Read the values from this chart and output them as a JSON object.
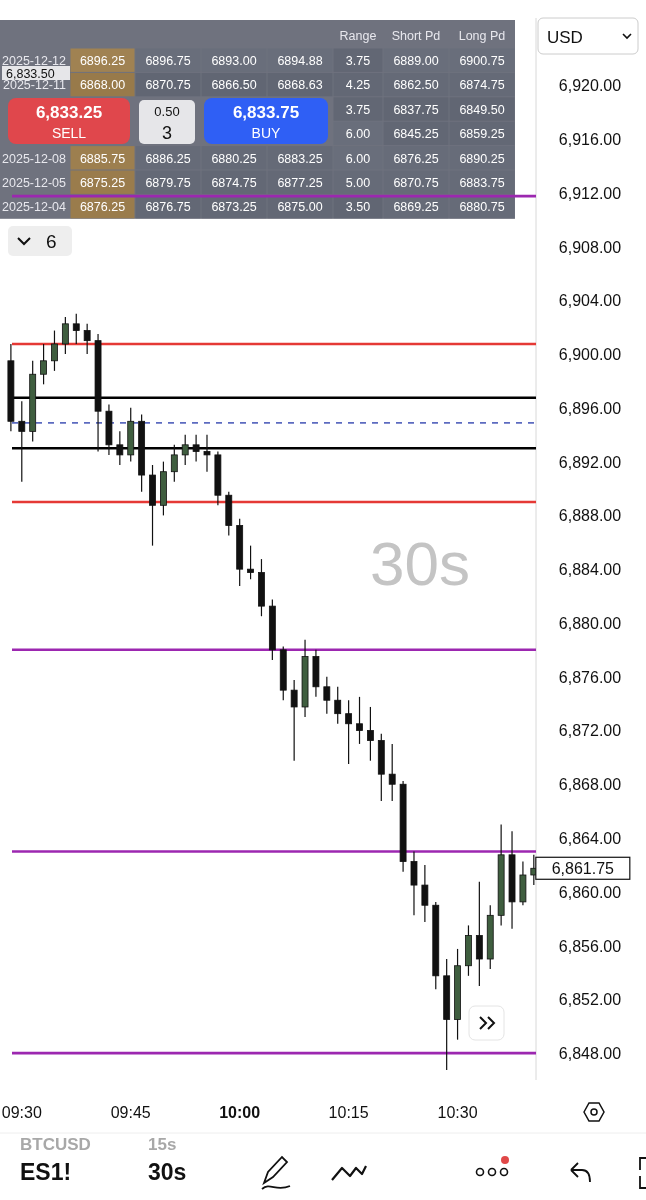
{
  "chart_data": [
    {
      "type": "candlestick",
      "x": [
        9.475,
        9.5,
        9.525,
        9.55,
        9.575,
        9.6,
        9.625,
        9.65,
        9.675,
        9.7,
        9.725,
        9.75,
        9.775,
        9.8,
        9.825,
        9.85,
        9.875,
        9.9,
        9.925,
        9.95,
        9.975,
        10,
        10.025,
        10.05,
        10.075,
        10.1,
        10.125,
        10.15,
        10.175,
        10.2,
        10.225,
        10.25,
        10.275,
        10.3,
        10.325,
        10.35,
        10.375,
        10.4,
        10.425,
        10.45,
        10.475,
        10.5,
        10.525,
        10.55,
        10.575,
        10.6,
        10.625,
        10.65,
        10.675
      ],
      "ohlc": [
        [
          6899.5,
          6900.75,
          6894.25,
          6895
        ],
        [
          6895,
          6896.5,
          6890.5,
          6894.25
        ],
        [
          6894.25,
          6899.5,
          6893.5,
          6898.5
        ],
        [
          6898.5,
          6900.75,
          6897.75,
          6899.5
        ],
        [
          6899.5,
          6901.75,
          6898.75,
          6900.75
        ],
        [
          6900.75,
          6902.75,
          6900,
          6902.25
        ],
        [
          6902.25,
          6903,
          6900.75,
          6901.75
        ],
        [
          6901.75,
          6902.25,
          6900,
          6901
        ],
        [
          6901,
          6901.5,
          6892.75,
          6895.75
        ],
        [
          6895.75,
          6896.25,
          6892.5,
          6893.25
        ],
        [
          6893.25,
          6894.25,
          6891.75,
          6892.5
        ],
        [
          6892.5,
          6896,
          6892,
          6895
        ],
        [
          6895,
          6895.5,
          6889.75,
          6891
        ],
        [
          6891,
          6891.75,
          6885.75,
          6888.75
        ],
        [
          6888.75,
          6892,
          6888,
          6891.25
        ],
        [
          6891.25,
          6893.25,
          6890.5,
          6892.5
        ],
        [
          6892.5,
          6894,
          6891.75,
          6893.25
        ],
        [
          6893.25,
          6894,
          6892,
          6892.75
        ],
        [
          6892.75,
          6894,
          6891.25,
          6892.5
        ],
        [
          6892.5,
          6892.75,
          6888.75,
          6889.5
        ],
        [
          6889.5,
          6889.75,
          6886.5,
          6887.25
        ],
        [
          6887.25,
          6887.75,
          6882.75,
          6884
        ],
        [
          6884,
          6885.75,
          6883.25,
          6883.75
        ],
        [
          6883.75,
          6884.75,
          6880.5,
          6881.25
        ],
        [
          6881.25,
          6881.75,
          6877.25,
          6878
        ],
        [
          6878,
          6878.25,
          6874.25,
          6875
        ],
        [
          6875,
          6875.75,
          6869.75,
          6873.75
        ],
        [
          6873.75,
          6878.75,
          6873,
          6877.5
        ],
        [
          6877.5,
          6878,
          6874.5,
          6875.25
        ],
        [
          6875.25,
          6876,
          6873.25,
          6874.25
        ],
        [
          6874.25,
          6875.25,
          6872.5,
          6873.25
        ],
        [
          6873.25,
          6874.25,
          6869.5,
          6872.5
        ],
        [
          6872.5,
          6874.5,
          6871,
          6872
        ],
        [
          6872,
          6873.75,
          6869.75,
          6871.25
        ],
        [
          6871.25,
          6871.75,
          6866.75,
          6868.75
        ],
        [
          6868.75,
          6871,
          6866.75,
          6868
        ],
        [
          6868,
          6868.25,
          6861.5,
          6862.25
        ],
        [
          6862.25,
          6863,
          6858.25,
          6860.5
        ],
        [
          6860.5,
          6862,
          6857.75,
          6859
        ],
        [
          6859,
          6859.25,
          6852.75,
          6853.75
        ],
        [
          6853.75,
          6855,
          6846.75,
          6850.5
        ],
        [
          6850.5,
          6855.75,
          6849,
          6854.5
        ],
        [
          6854.5,
          6857.5,
          6853.75,
          6856.75
        ],
        [
          6856.75,
          6860.75,
          6853,
          6855
        ],
        [
          6855,
          6859,
          6854.25,
          6858.25
        ],
        [
          6858.25,
          6865,
          6857.5,
          6862.75
        ],
        [
          6862.75,
          6864.5,
          6857.25,
          6859.25
        ],
        [
          6859.25,
          6862.25,
          6859,
          6861.25
        ],
        [
          6861.25,
          6862.75,
          6860.5,
          6861.75
        ]
      ],
      "xlim": [
        9.45,
        10.68
      ],
      "xticks": [
        {
          "value": 9.5,
          "label": "09:30"
        },
        {
          "value": 9.75,
          "label": "09:45"
        },
        {
          "value": 10,
          "label": "10:00"
        },
        {
          "value": 10.25,
          "label": "10:15"
        },
        {
          "value": 10.5,
          "label": "10:30"
        }
      ],
      "ylim": [
        6846,
        6925
      ],
      "yticks": [
        {
          "value": 6848,
          "label": "6,848.00"
        },
        {
          "value": 6852,
          "label": "6,852.00"
        },
        {
          "value": 6856,
          "label": "6,856.00"
        },
        {
          "value": 6860,
          "label": "6,860.00"
        },
        {
          "value": 6864,
          "label": "6,864.00"
        },
        {
          "value": 6868,
          "label": "6,868.00"
        },
        {
          "value": 6872,
          "label": "6,872.00"
        },
        {
          "value": 6876,
          "label": "6,876.00"
        },
        {
          "value": 6880,
          "label": "6,880.00"
        },
        {
          "value": 6884,
          "label": "6,884.00"
        },
        {
          "value": 6888,
          "label": "6,888.00"
        },
        {
          "value": 6892,
          "label": "6,892.00"
        },
        {
          "value": 6896,
          "label": "6,896.00"
        },
        {
          "value": 6900,
          "label": "6,900.00"
        },
        {
          "value": 6904,
          "label": "6,904.00"
        },
        {
          "value": 6908,
          "label": "6,908.00"
        },
        {
          "value": 6912,
          "label": "6,912.00"
        },
        {
          "value": 6916,
          "label": "6,916.00"
        },
        {
          "value": 6920,
          "label": "6,920.00"
        }
      ],
      "ref_lines": [
        {
          "axis": "y",
          "value": 6900.75,
          "color": "#e53935"
        },
        {
          "axis": "y",
          "value": 6896.75,
          "color": "#000000"
        },
        {
          "axis": "y",
          "value": 6894.88,
          "color": "#5c6bc0",
          "line_style": "dashed"
        },
        {
          "axis": "y",
          "value": 6893,
          "color": "#000000"
        },
        {
          "axis": "y",
          "value": 6889,
          "color": "#e53935"
        },
        {
          "axis": "y",
          "value": 6911.75,
          "color": "#9c27b0"
        },
        {
          "axis": "y",
          "value": 6878,
          "color": "#9c27b0"
        },
        {
          "axis": "y",
          "value": 6863,
          "color": "#9c27b0"
        },
        {
          "axis": "y",
          "value": 6848,
          "color": "#9c27b0"
        }
      ],
      "annotations": [
        "30s",
        "6,833.50",
        "6,833.25",
        "SELL",
        "0.50",
        "3",
        "6,833.75",
        "BUY",
        "6",
        "USD",
        "BTCUSD",
        "15s",
        "ES1!",
        "30s",
        {
          "text": "6,861.75",
          "x": 10.675,
          "y": 6861.75
        }
      ]
    },
    {
      "type": "heatmap",
      "categories": [
        null,
        null,
        null,
        null,
        "Range",
        "Short Pd",
        "Long Pd"
      ],
      "y_categories": [
        "2025-12-12",
        "2025-12-11",
        null,
        null,
        "2025-12-08",
        "2025-12-05",
        "2025-12-04"
      ],
      "cells": [
        [
          6896.25,
          6896.75,
          6893,
          6894.88,
          3.75,
          6889,
          6900.75
        ],
        [
          6868,
          6870.75,
          6866.5,
          6868.63,
          4.25,
          6862.5,
          6874.75
        ],
        [
          null,
          null,
          null,
          null,
          3.75,
          6837.75,
          6849.5
        ],
        [
          null,
          null,
          null,
          null,
          6,
          6845.25,
          6859.25
        ],
        [
          6885.75,
          6886.25,
          6880.25,
          6883.25,
          6,
          6876.25,
          6890.25
        ],
        [
          6875.25,
          6879.75,
          6874.75,
          6877.25,
          5,
          6870.75,
          6883.75
        ],
        [
          6876.25,
          6876.75,
          6873.25,
          6875,
          3.5,
          6869.25,
          6880.75
        ]
      ],
      "cell_labels": [
        [
          "6896.25",
          "6896.75",
          "6893.00",
          "6894.88",
          "3.75",
          "6889.00",
          "6900.75"
        ],
        [
          "6868.00",
          "6870.75",
          "6866.50",
          "6868.63",
          "4.25",
          "6862.50",
          "6874.75"
        ],
        [
          null,
          null,
          null,
          null,
          "3.75",
          "6837.75",
          "6849.50"
        ],
        [
          null,
          null,
          null,
          null,
          "6.00",
          "6845.25",
          "6859.25"
        ],
        [
          "6885.75",
          "6886.25",
          "6880.25",
          "6883.25",
          "6.00",
          "6876.25",
          "6890.25"
        ],
        [
          "6875.25",
          "6879.75",
          "6874.75",
          "6877.25",
          "5.00",
          "6870.75",
          "6883.75"
        ],
        [
          "6876.25",
          "6876.75",
          "6873.25",
          "6875.00",
          "3.50",
          "6869.25",
          "6880.75"
        ]
      ]
    }
  ]
}
